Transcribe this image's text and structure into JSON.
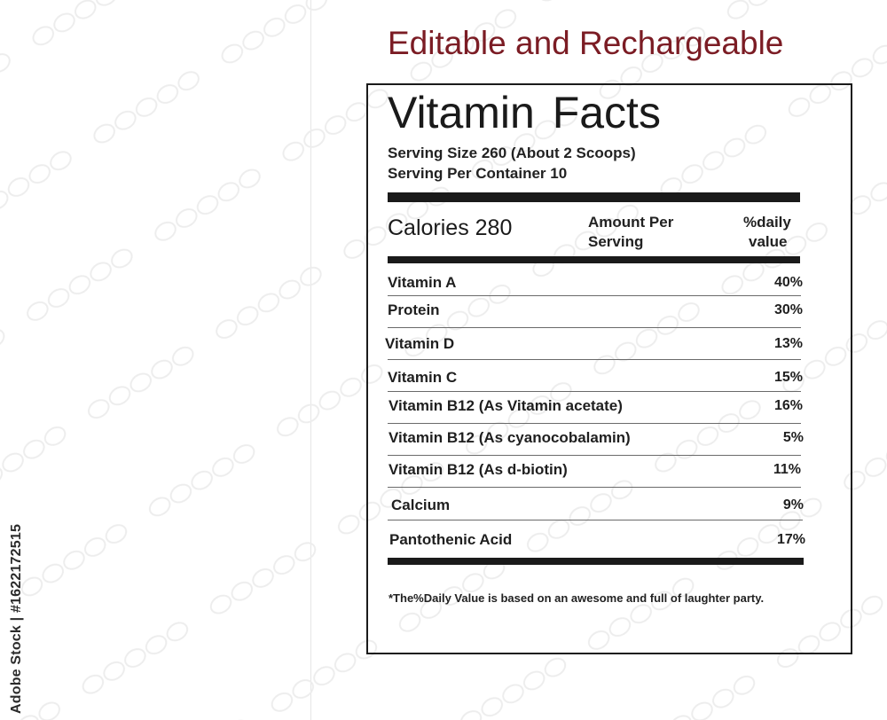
{
  "stock_id": "Adobe Stock | #1622172515",
  "headline": "Editable and Rechargeable",
  "label": {
    "title": "Vitamin  Facts",
    "serving_size": "Serving Size 260 (About 2 Scoops)",
    "servings_per_container": "Serving Per Container 10",
    "calories": "Calories 280",
    "amount_header_line1": "Amount Per",
    "amount_header_line2": "Serving",
    "daily_header_line1": "%daily",
    "daily_header_line2": "value",
    "nutrients": [
      {
        "name": "Vitamin A",
        "value": "40%"
      },
      {
        "name": "Protein",
        "value": "30%"
      },
      {
        "name": "Vitamin D",
        "value": "13%"
      },
      {
        "name": "Vitamin C",
        "value": "15%"
      },
      {
        "name": "Vitamin B12 (As Vitamin acetate)",
        "value": "16%"
      },
      {
        "name": "Vitamin B12 (As cyanocobalamin)",
        "value": "5%"
      },
      {
        "name": "Vitamin B12 (As d-biotin)",
        "value": "11%"
      },
      {
        "name": "Calcium",
        "value": "9%"
      },
      {
        "name": "Pantothenic Acid",
        "value": "17%"
      }
    ],
    "footnote": "*The%Daily Value is based on an awesome and full of laughter party."
  },
  "colors": {
    "headline": "#7b1c24",
    "text": "#1a1a1a"
  }
}
